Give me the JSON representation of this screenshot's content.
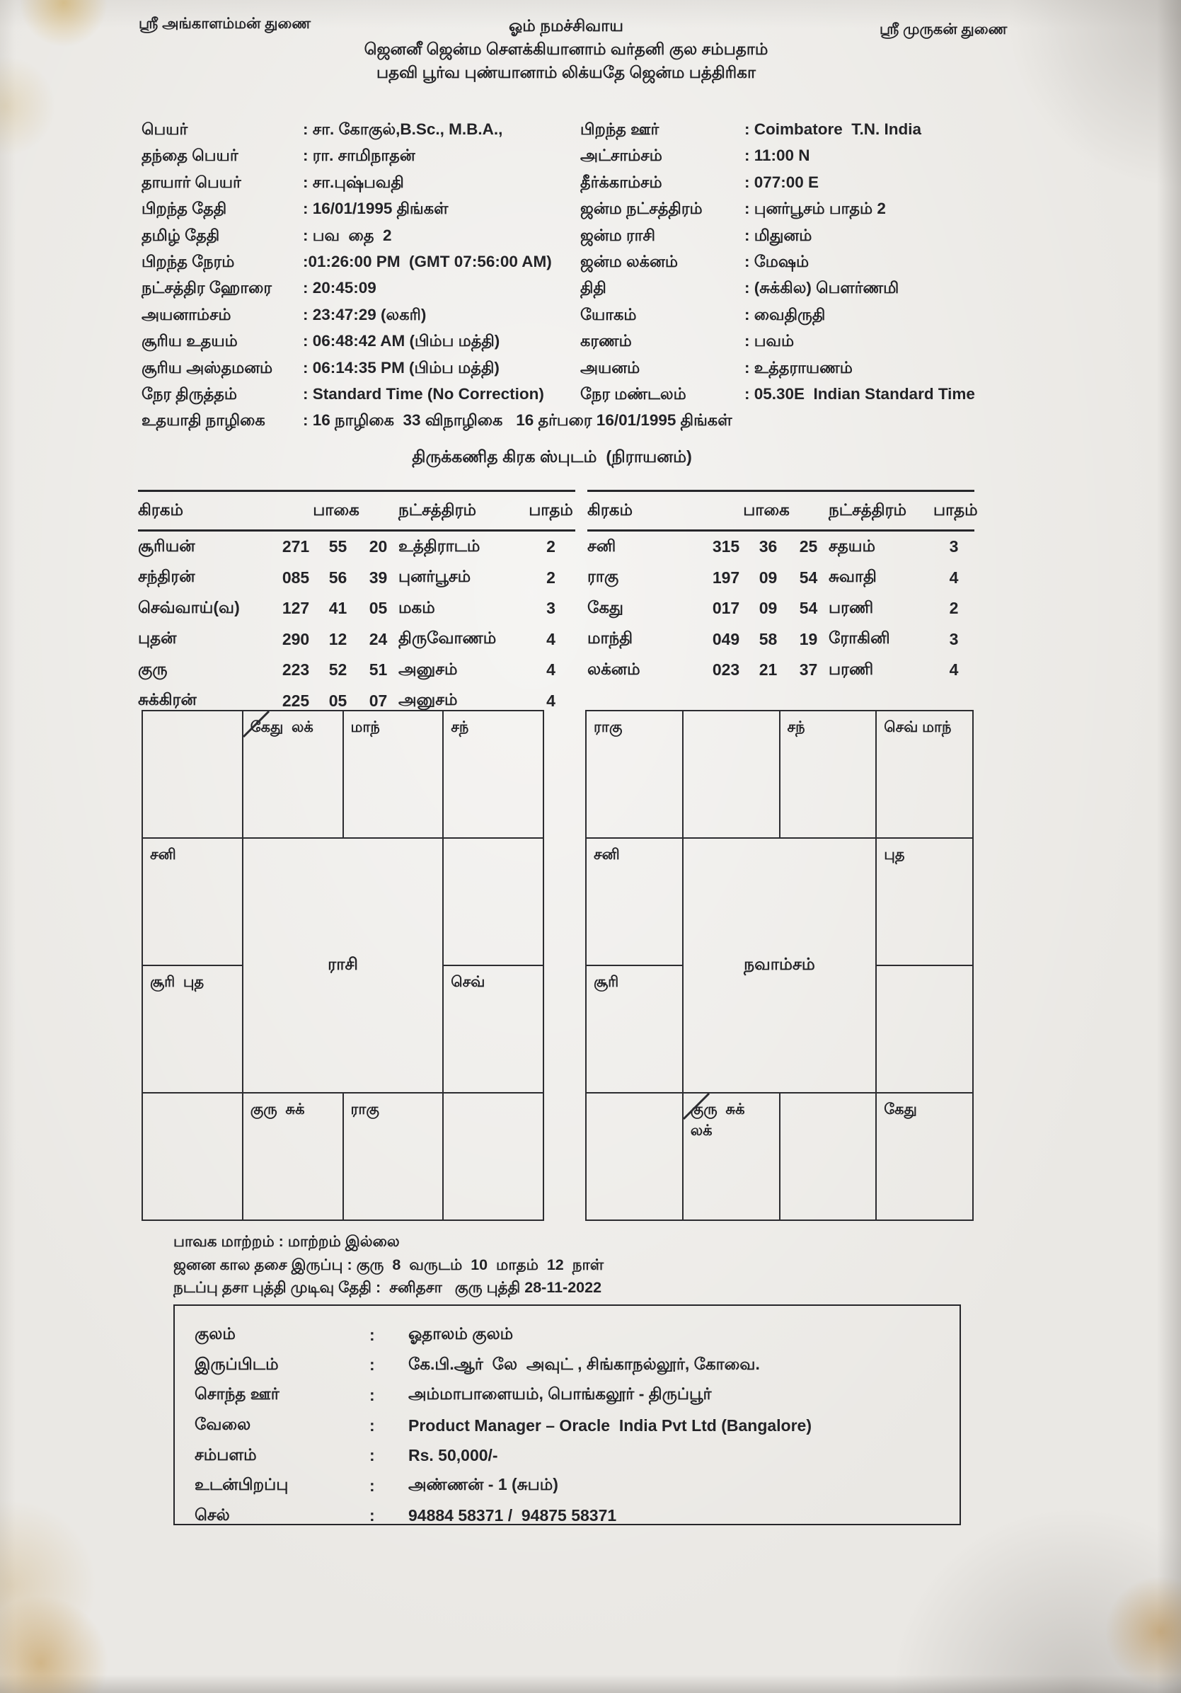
{
  "page": {
    "blessing_left": "ஸ்ரீ அங்காளம்மன் துணை",
    "blessing_right": "ஸ்ரீ முருகன் துணை",
    "title_line1": "ஓம் நமச்சிவாய",
    "title_line2": "ஜெனனீ ஜென்ம சௌக்கியானாம் வர்தனி குல சம்பதாம்",
    "title_line3": "பதவி பூர்வ புண்யானாம் லிக்யதே ஜென்ம பத்திரிகா"
  },
  "details": {
    "left": [
      {
        "label": "பெயர்",
        "value": ": சா. கோகுல்,B.Sc., M.B.A.,"
      },
      {
        "label": "தந்தை பெயர்",
        "value": ": ரா. சாமிநாதன்"
      },
      {
        "label": "தாயார் பெயர்",
        "value": ": சா.புஷ்பவதி"
      },
      {
        "label": "பிறந்த தேதி",
        "value": ": 16/01/1995 திங்கள்"
      },
      {
        "label": "தமிழ் தேதி",
        "value": ": பவ  தை  2"
      },
      {
        "label": "பிறந்த நேரம்",
        "value": ":01:26:00 PM  (GMT 07:56:00 AM)"
      },
      {
        "label": "நட்சத்திர ஹோரை",
        "value": ": 20:45:09"
      },
      {
        "label": "அயனாம்சம்",
        "value": ": 23:47:29 (லகரி)"
      },
      {
        "label": "சூரிய உதயம்",
        "value": ": 06:48:42 AM (பிம்ப மத்தி)"
      },
      {
        "label": "சூரிய அஸ்தமனம்",
        "value": ": 06:14:35 PM (பிம்ப மத்தி)"
      },
      {
        "label": "நேர திருத்தம்",
        "value": ": Standard Time (No Correction)"
      },
      {
        "label": "உதயாதி நாழிகை",
        "value": ": 16 நாழிகை  33 விநாழிகை   16 தர்பரை 16/01/1995 திங்கள்"
      }
    ],
    "right": [
      {
        "label": "பிறந்த ஊர்",
        "value": ": Coimbatore  T.N. India"
      },
      {
        "label": "அட்சாம்சம்",
        "value": ": 11:00 N"
      },
      {
        "label": "தீர்க்காம்சம்",
        "value": ": 077:00 E"
      },
      {
        "label": "ஜன்ம நட்சத்திரம்",
        "value": ": புனர்பூசம் பாதம் 2"
      },
      {
        "label": "ஜன்ம ராசி",
        "value": ": மிதுனம்"
      },
      {
        "label": "ஜன்ம லக்னம்",
        "value": ": மேஷம்"
      },
      {
        "label": "திதி",
        "value": ": (சுக்கில) பௌர்ணமி"
      },
      {
        "label": "யோகம்",
        "value": ": வைதிருதி"
      },
      {
        "label": "கரணம்",
        "value": ": பவம்"
      },
      {
        "label": "அயனம்",
        "value": ": உத்தராயணம்"
      },
      {
        "label": "நேர மண்டலம்",
        "value": ": 05.30E  Indian Standard Time"
      }
    ]
  },
  "sputam": {
    "title": "திருக்கணித கிரக ஸ்புடம்  (நிராயனம்)",
    "headers": {
      "graha": "கிரகம்",
      "degrees": "பாகை",
      "nakshatra": "நட்சத்திரம்",
      "padam": "பாதம்"
    },
    "left_rows": [
      [
        "சூரியன்",
        "271",
        "55",
        "20",
        "உத்திராடம்",
        "2"
      ],
      [
        "சந்திரன்",
        "085",
        "56",
        "39",
        "புனர்பூசம்",
        "2"
      ],
      [
        "செவ்வாய்(வ)",
        "127",
        "41",
        "05",
        "மகம்",
        "3"
      ],
      [
        "புதன்",
        "290",
        "12",
        "24",
        "திருவோணம்",
        "4"
      ],
      [
        "குரு",
        "223",
        "52",
        "51",
        "அனுசம்",
        "4"
      ],
      [
        "சுக்கிரன்",
        "225",
        "05",
        "07",
        "அனுசம்",
        "4"
      ]
    ],
    "right_rows": [
      [
        "சனி",
        "315",
        "36",
        "25",
        "சதயம்",
        "3"
      ],
      [
        "ராகு",
        "197",
        "09",
        "54",
        "சுவாதி",
        "4"
      ],
      [
        "கேது",
        "017",
        "09",
        "54",
        "பரணி",
        "2"
      ],
      [
        "மாந்தி",
        "049",
        "58",
        "19",
        "ரோகினி",
        "3"
      ],
      [
        "லக்னம்",
        "023",
        "21",
        "37",
        "பரணி",
        "4"
      ]
    ]
  },
  "charts": {
    "rasi": {
      "title": "ராசி",
      "cells": [
        {
          "r": 1,
          "c": 1,
          "lines": []
        },
        {
          "r": 1,
          "c": 2,
          "lines": [
            "கேது  லக்"
          ],
          "lagna": true
        },
        {
          "r": 1,
          "c": 3,
          "lines": [
            "மாந்"
          ]
        },
        {
          "r": 1,
          "c": 4,
          "lines": [
            "சந்"
          ]
        },
        {
          "r": 2,
          "c": 1,
          "lines": [
            "சனி"
          ]
        },
        {
          "r": 2,
          "c": 4,
          "lines": []
        },
        {
          "r": 3,
          "c": 1,
          "lines": [
            "சூரி  புத"
          ]
        },
        {
          "r": 3,
          "c": 4,
          "lines": [
            "செவ்"
          ]
        },
        {
          "r": 4,
          "c": 1,
          "lines": []
        },
        {
          "r": 4,
          "c": 2,
          "lines": [
            "குரு  சுக்"
          ]
        },
        {
          "r": 4,
          "c": 3,
          "lines": [
            "ராகு"
          ]
        },
        {
          "r": 4,
          "c": 4,
          "lines": []
        }
      ]
    },
    "navamsam": {
      "title": "நவாம்சம்",
      "cells": [
        {
          "r": 1,
          "c": 1,
          "lines": [
            "ராகு"
          ]
        },
        {
          "r": 1,
          "c": 2,
          "lines": []
        },
        {
          "r": 1,
          "c": 3,
          "lines": [
            "சந்"
          ]
        },
        {
          "r": 1,
          "c": 4,
          "lines": [
            "செவ் மாந்"
          ]
        },
        {
          "r": 2,
          "c": 1,
          "lines": [
            "சனி"
          ]
        },
        {
          "r": 2,
          "c": 4,
          "lines": [
            "புத"
          ]
        },
        {
          "r": 3,
          "c": 1,
          "lines": [
            "சூரி"
          ]
        },
        {
          "r": 3,
          "c": 4,
          "lines": []
        },
        {
          "r": 4,
          "c": 1,
          "lines": []
        },
        {
          "r": 4,
          "c": 2,
          "lines": [
            "குரு  சுக்",
            "லக்"
          ],
          "lagna": true
        },
        {
          "r": 4,
          "c": 3,
          "lines": []
        },
        {
          "r": 4,
          "c": 4,
          "lines": [
            "கேது"
          ]
        }
      ]
    }
  },
  "dasa": {
    "line1": "பாவக மாற்றம் : மாற்றம் இல்லை",
    "line2": "ஜனன கால தசை இருப்பு : குரு  8  வருடம்  10  மாதம்  12  நாள்",
    "line3": "நடப்பு தசா புத்தி முடிவு தேதி :  சனிதசா   குரு புத்தி 28-11-2022"
  },
  "info_box": {
    "separator": ":",
    "rows": [
      {
        "label": "குலம்",
        "value": "ஓதாலம் குலம்"
      },
      {
        "label": "இருப்பிடம்",
        "value": "கே.பி.ஆர்  லே  அவுட் , சிங்காநல்லூர், கோவை."
      },
      {
        "label": "சொந்த ஊர்",
        "value": "அம்மாபாளையம், பொங்கலூர் - திருப்பூர்"
      },
      {
        "label": "வேலை",
        "value": "Product Manager – Oracle  India Pvt Ltd (Bangalore)"
      },
      {
        "label": "சம்பளம்",
        "value": "Rs. 50,000/-"
      },
      {
        "label": "உடன்பிறப்பு",
        "value": "அண்ணன் - 1 (சுபம்)"
      },
      {
        "label": "செல்",
        "value": "94884 58371 /  94875 58371"
      }
    ]
  }
}
